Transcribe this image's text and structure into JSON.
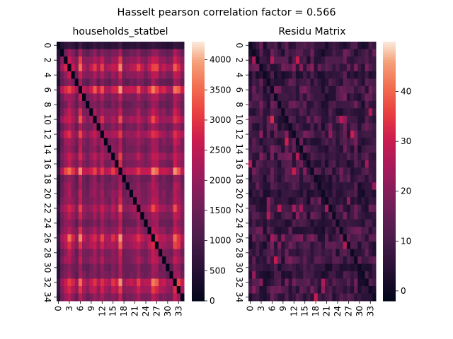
{
  "suptitle": "Hasselt pearson correlation factor = 0.566",
  "chart_data": [
    {
      "type": "heatmap",
      "title": "households_statbel",
      "n": 35,
      "tick_labels_y": [
        "0",
        "2",
        "4",
        "6",
        "8",
        "10",
        "12",
        "14",
        "16",
        "18",
        "20",
        "22",
        "24",
        "26",
        "28",
        "30",
        "32",
        "34"
      ],
      "tick_labels_x": [
        "0",
        "3",
        "6",
        "9",
        "12",
        "15",
        "18",
        "21",
        "24",
        "27",
        "30",
        "33"
      ],
      "vmin": 0,
      "vmax": 4300,
      "colorbar_ticks": [
        0,
        500,
        1000,
        1500,
        2000,
        2500,
        3000,
        3500,
        4000
      ],
      "colorbar_tick_labels": [
        "0",
        "500",
        "1000",
        "1500",
        "2000",
        "2500",
        "3000",
        "3500",
        "4000"
      ],
      "row_levels": [
        200,
        1300,
        2100,
        3000,
        1900,
        1200,
        3600,
        1700,
        1300,
        1800,
        2500,
        1500,
        2600,
        1600,
        1500,
        2100,
        1700,
        3700,
        1300,
        1500,
        1600,
        1700,
        2500,
        1700,
        1400,
        1900,
        3300,
        2600,
        1600,
        1800,
        1300,
        1400,
        3400,
        2600,
        1600
      ],
      "colormap": "rocket",
      "diagonal": 0
    },
    {
      "type": "heatmap",
      "title": "Residu Matrix",
      "n": 35,
      "tick_labels_y": [
        "0",
        "2",
        "4",
        "6",
        "8",
        "10",
        "12",
        "14",
        "16",
        "18",
        "20",
        "22",
        "24",
        "26",
        "28",
        "30",
        "32",
        "34"
      ],
      "tick_labels_x": [
        "0",
        "3",
        "6",
        "9",
        "12",
        "15",
        "18",
        "21",
        "24",
        "27",
        "30",
        "33"
      ],
      "vmin": -2,
      "vmax": 50,
      "colorbar_ticks": [
        0,
        10,
        20,
        30,
        40
      ],
      "colorbar_tick_labels": [
        "0",
        "10",
        "20",
        "30",
        "40"
      ],
      "row_levels": [
        6,
        10,
        12,
        18,
        4,
        8,
        16,
        12,
        12,
        8,
        16,
        14,
        14,
        12,
        12,
        14,
        10,
        16,
        10,
        6,
        4,
        6,
        12,
        10,
        6,
        12,
        16,
        12,
        10,
        14,
        6,
        4,
        12,
        12,
        8
      ],
      "colormap": "rocket",
      "diagonal": 0
    }
  ]
}
